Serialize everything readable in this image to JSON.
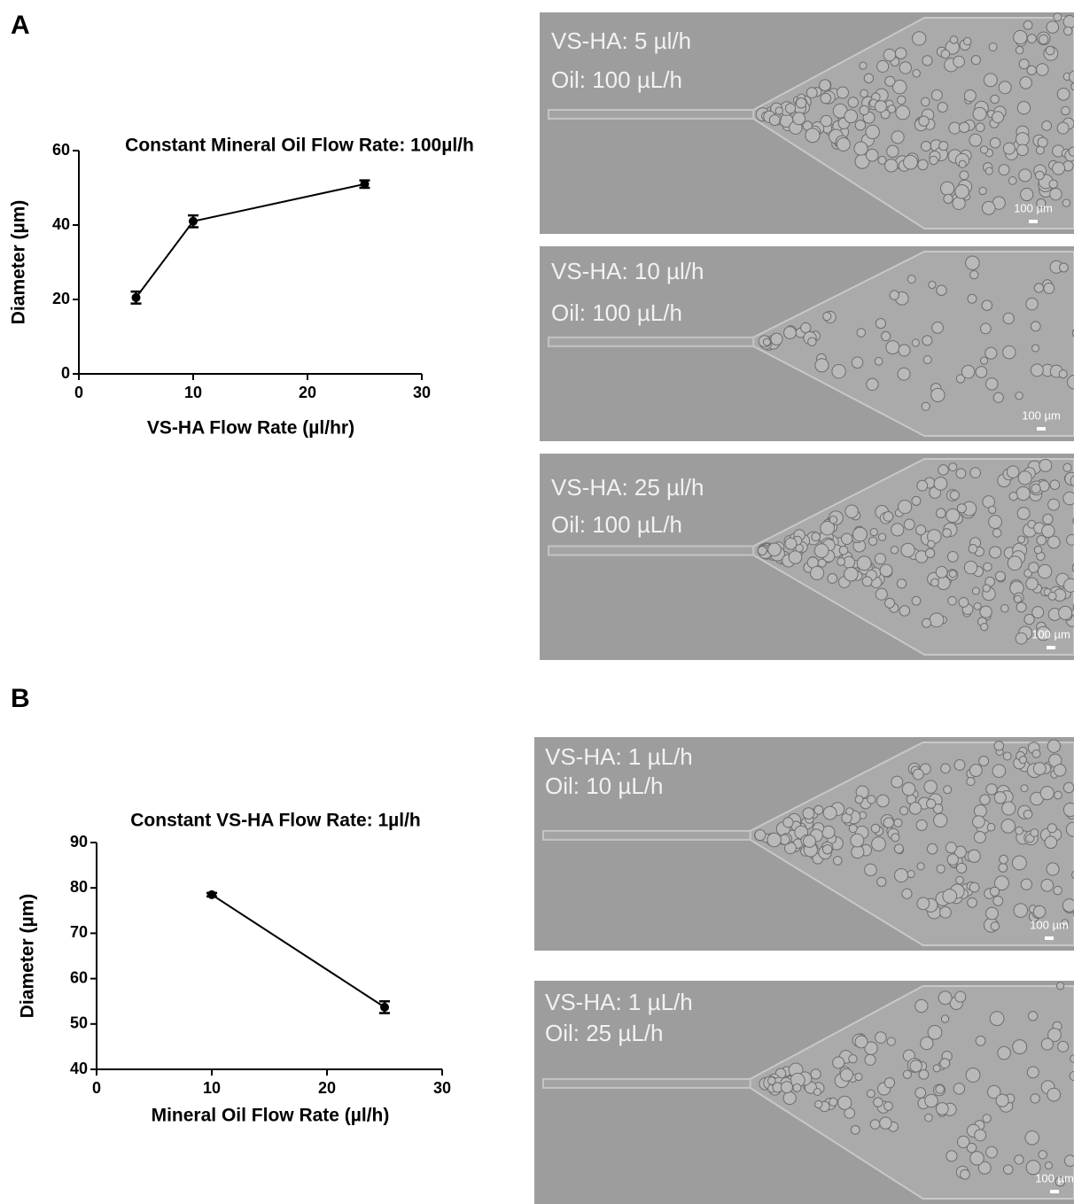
{
  "panels": [
    "A",
    "B"
  ],
  "chart_data": [
    {
      "type": "line",
      "title": "Constant Mineral Oil Flow Rate: 100µl/h",
      "x_label": "VS-HA Flow Rate (µl/hr)",
      "y_label": "Diameter (µm)",
      "x": [
        5,
        10,
        25
      ],
      "values": [
        20.5,
        41,
        51
      ],
      "errors": [
        1.6,
        1.6,
        1.0
      ],
      "color": "#000000",
      "xlim": [
        0,
        30
      ],
      "xticks": [
        0,
        10,
        20,
        30
      ],
      "ylim": [
        0,
        60
      ],
      "yticks": [
        0,
        20,
        40,
        60
      ]
    },
    {
      "type": "line",
      "title": "Constant VS-HA Flow Rate: 1µl/h",
      "x_label": "Mineral Oil Flow Rate (µl/h)",
      "y_label": "Diameter (µm)",
      "x": [
        10,
        25
      ],
      "values": [
        78.5,
        53.7
      ],
      "errors": [
        0.4,
        1.3
      ],
      "color": "#000000",
      "xlim": [
        0,
        30
      ],
      "xticks": [
        0,
        10,
        20,
        30
      ],
      "ylim": [
        40,
        90
      ],
      "yticks": [
        40,
        50,
        60,
        70,
        80,
        90
      ]
    }
  ],
  "images": [
    {
      "lines": [
        "VS-HA: 5 µl/h",
        "Oil: 100 µL/h"
      ],
      "scale_bar": "100 µm"
    },
    {
      "lines": [
        "VS-HA: 10 µl/h",
        "Oil: 100 µL/h"
      ],
      "scale_bar": "100 µm"
    },
    {
      "lines": [
        "VS-HA: 25 µl/h",
        "Oil: 100 µL/h"
      ],
      "scale_bar": "100 µm"
    },
    {
      "lines": [
        "VS-HA: 1 µL/h",
        "Oil: 10 µL/h"
      ],
      "scale_bar": "100 µm"
    },
    {
      "lines": [
        "VS-HA: 1 µL/h",
        "Oil: 25 µL/h"
      ],
      "scale_bar": "100 µm"
    }
  ]
}
